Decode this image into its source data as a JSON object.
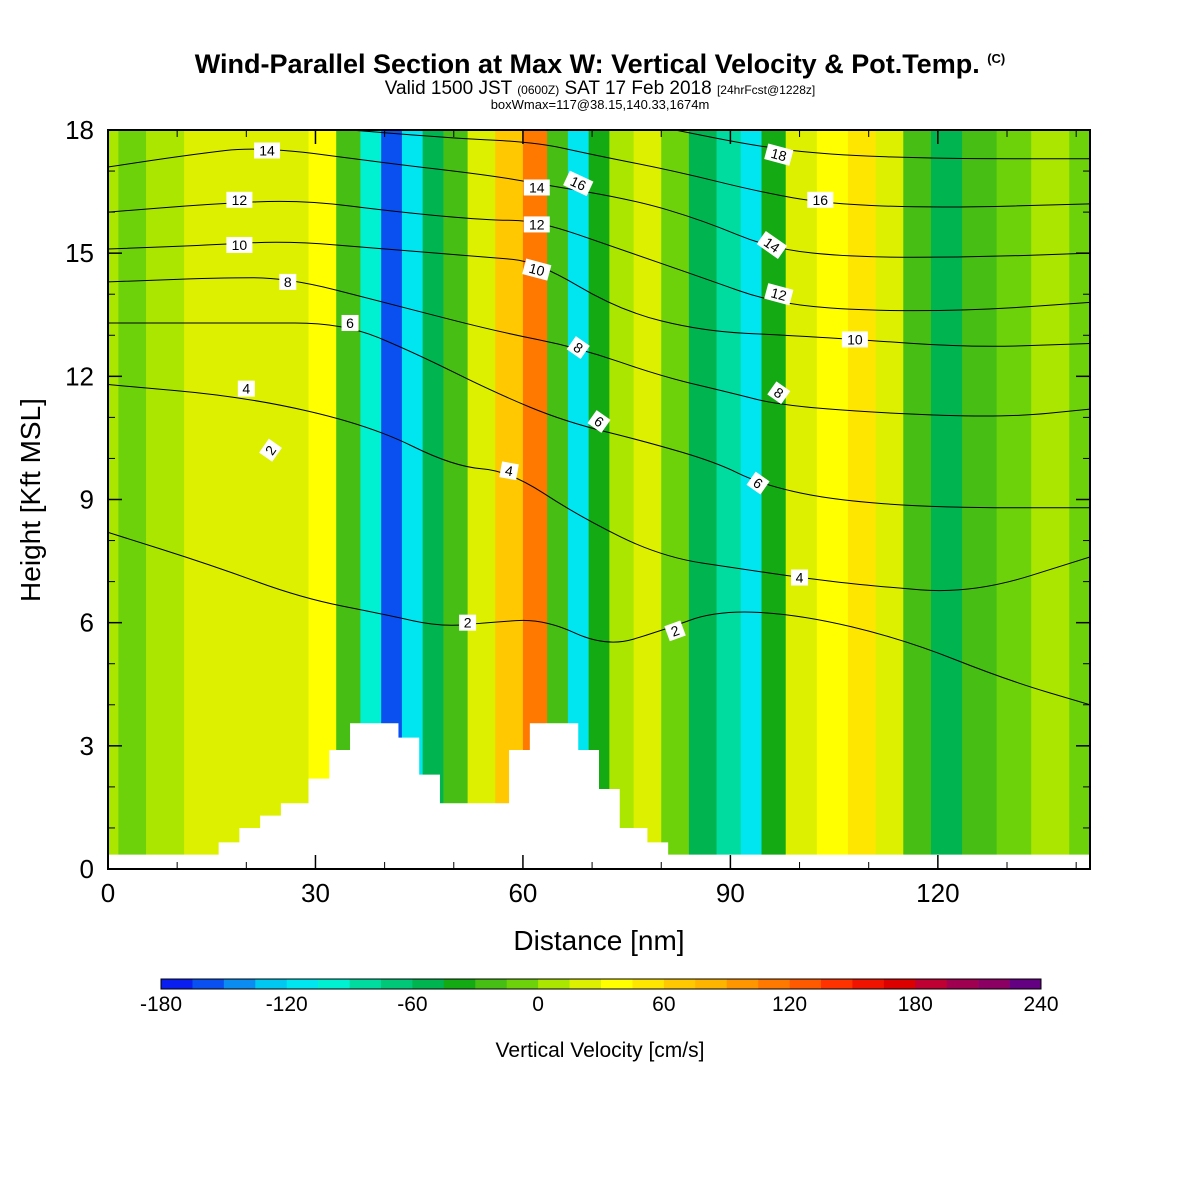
{
  "title": {
    "main": "Wind-Parallel Section at Max W: Vertical Velocity & Pot.Temp.",
    "main_suffix": "(C)",
    "line2_a": "Valid 1500 JST",
    "line2_b": "(0600Z)",
    "line2_c": "SAT 17 Feb 2018",
    "line2_d": "[24hrFcst@1228z]",
    "line3": "boxWmax=117@38.15,140.33,1674m"
  },
  "chart_data": {
    "type": "heatmap",
    "xlabel": "Distance [nm]",
    "ylabel": "Height [Kft MSL]",
    "xlim": [
      0,
      142
    ],
    "ylim": [
      0,
      18
    ],
    "x_ticks": [
      0,
      30,
      60,
      90,
      120
    ],
    "y_ticks": [
      0,
      3,
      6,
      9,
      12,
      15,
      18
    ],
    "colorbar": {
      "label": "Vertical Velocity [cm/s]",
      "tick_labels": [
        -180,
        -120,
        -60,
        0,
        60,
        120,
        180,
        240
      ],
      "levels": [
        -180,
        -165,
        -150,
        -135,
        -120,
        -105,
        -90,
        -75,
        -60,
        -45,
        -30,
        -15,
        0,
        15,
        30,
        45,
        60,
        75,
        90,
        105,
        120,
        135,
        150,
        165,
        180,
        195,
        210,
        225,
        240
      ],
      "colors": [
        "#0a1ef0",
        "#0a50f0",
        "#0a8cf0",
        "#00c8f0",
        "#00e6f0",
        "#00f0d2",
        "#00dca0",
        "#00c878",
        "#00b450",
        "#14aa14",
        "#46be14",
        "#6ed20a",
        "#aae600",
        "#dcf000",
        "#ffff00",
        "#ffe600",
        "#ffc800",
        "#ffb400",
        "#ff9600",
        "#ff7800",
        "#ff5a00",
        "#ff3200",
        "#f01400",
        "#dc0000",
        "#be0032",
        "#a00050",
        "#8c0064",
        "#640082"
      ]
    },
    "vertical_velocity_columns": [
      {
        "x": 0,
        "w": 5
      },
      {
        "x": 3,
        "w": -15
      },
      {
        "x": 8,
        "w": 5
      },
      {
        "x": 14,
        "w": 20
      },
      {
        "x": 22,
        "w": 25
      },
      {
        "x": 27,
        "w": 15
      },
      {
        "x": 31,
        "w": 30
      },
      {
        "x": 35,
        "w": -30
      },
      {
        "x": 38,
        "w": -100
      },
      {
        "x": 41,
        "w": -160
      },
      {
        "x": 44,
        "w": -110
      },
      {
        "x": 47,
        "w": -60
      },
      {
        "x": 50,
        "w": -30
      },
      {
        "x": 54,
        "w": 20
      },
      {
        "x": 58,
        "w": 70
      },
      {
        "x": 62,
        "w": 110
      },
      {
        "x": 65,
        "w": -30
      },
      {
        "x": 68,
        "w": -110
      },
      {
        "x": 71,
        "w": -40
      },
      {
        "x": 74,
        "w": 10
      },
      {
        "x": 78,
        "w": 25
      },
      {
        "x": 82,
        "w": -10
      },
      {
        "x": 86,
        "w": -50
      },
      {
        "x": 90,
        "w": -80
      },
      {
        "x": 93,
        "w": -120
      },
      {
        "x": 96,
        "w": -40
      },
      {
        "x": 100,
        "w": 15
      },
      {
        "x": 105,
        "w": 40
      },
      {
        "x": 109,
        "w": 45
      },
      {
        "x": 113,
        "w": 15
      },
      {
        "x": 117,
        "w": -25
      },
      {
        "x": 121,
        "w": -50
      },
      {
        "x": 126,
        "w": -20
      },
      {
        "x": 131,
        "w": -10
      },
      {
        "x": 136,
        "w": 0
      },
      {
        "x": 142,
        "w": -10
      }
    ],
    "terrain": [
      [
        0,
        0.35
      ],
      [
        16,
        0.35
      ],
      [
        16,
        0.65
      ],
      [
        19,
        0.65
      ],
      [
        19,
        1.0
      ],
      [
        22,
        1.0
      ],
      [
        22,
        1.3
      ],
      [
        25,
        1.3
      ],
      [
        25,
        1.6
      ],
      [
        29,
        1.6
      ],
      [
        29,
        2.2
      ],
      [
        32,
        2.2
      ],
      [
        32,
        2.9
      ],
      [
        35,
        2.9
      ],
      [
        35,
        3.55
      ],
      [
        42,
        3.55
      ],
      [
        42,
        3.2
      ],
      [
        45,
        3.2
      ],
      [
        45,
        2.3
      ],
      [
        48,
        2.3
      ],
      [
        48,
        1.6
      ],
      [
        58,
        1.6
      ],
      [
        58,
        2.9
      ],
      [
        61,
        2.9
      ],
      [
        61,
        3.55
      ],
      [
        68,
        3.55
      ],
      [
        68,
        2.9
      ],
      [
        71,
        2.9
      ],
      [
        71,
        1.95
      ],
      [
        74,
        1.95
      ],
      [
        74,
        1.0
      ],
      [
        78,
        1.0
      ],
      [
        78,
        0.65
      ],
      [
        81,
        0.65
      ],
      [
        81,
        0.35
      ],
      [
        142,
        0.35
      ]
    ],
    "theta_contours": [
      {
        "label": "2",
        "points": [
          [
            0,
            8.2
          ],
          [
            15,
            7.4
          ],
          [
            28,
            6.6
          ],
          [
            40,
            6.2
          ],
          [
            48,
            5.9
          ],
          [
            55,
            6.0
          ],
          [
            63,
            6.1
          ],
          [
            72,
            5.4
          ],
          [
            80,
            5.8
          ],
          [
            88,
            6.3
          ],
          [
            100,
            6.2
          ],
          [
            115,
            5.6
          ],
          [
            130,
            4.6
          ],
          [
            142,
            4.0
          ]
        ]
      },
      {
        "label": "4",
        "points": [
          [
            0,
            11.8
          ],
          [
            20,
            11.5
          ],
          [
            38,
            10.8
          ],
          [
            50,
            9.8
          ],
          [
            58,
            9.7
          ],
          [
            68,
            8.6
          ],
          [
            80,
            7.6
          ],
          [
            92,
            7.3
          ],
          [
            100,
            7.1
          ],
          [
            110,
            6.9
          ],
          [
            125,
            6.7
          ],
          [
            142,
            7.6
          ]
        ]
      },
      {
        "label": "6",
        "points": [
          [
            0,
            13.3
          ],
          [
            20,
            13.3
          ],
          [
            34,
            13.3
          ],
          [
            44,
            12.6
          ],
          [
            56,
            11.6
          ],
          [
            66,
            10.9
          ],
          [
            78,
            10.4
          ],
          [
            88,
            9.9
          ],
          [
            94,
            9.4
          ],
          [
            104,
            9.0
          ],
          [
            120,
            8.8
          ],
          [
            142,
            8.8
          ]
        ]
      },
      {
        "label": "8",
        "points": [
          [
            0,
            14.3
          ],
          [
            16,
            14.4
          ],
          [
            26,
            14.4
          ],
          [
            40,
            13.8
          ],
          [
            56,
            13.1
          ],
          [
            68,
            12.7
          ],
          [
            80,
            12.0
          ],
          [
            90,
            11.6
          ],
          [
            97,
            11.3
          ],
          [
            112,
            11.1
          ],
          [
            130,
            11.0
          ],
          [
            142,
            11.2
          ]
        ]
      },
      {
        "label": "10",
        "points": [
          [
            0,
            15.1
          ],
          [
            15,
            15.2
          ],
          [
            26,
            15.3
          ],
          [
            40,
            15.1
          ],
          [
            55,
            14.9
          ],
          [
            62,
            14.8
          ],
          [
            74,
            13.6
          ],
          [
            86,
            13.1
          ],
          [
            98,
            13.0
          ],
          [
            108,
            12.9
          ],
          [
            125,
            12.7
          ],
          [
            142,
            12.8
          ]
        ]
      },
      {
        "label": "12",
        "points": [
          [
            0,
            16.0
          ],
          [
            15,
            16.2
          ],
          [
            28,
            16.3
          ],
          [
            42,
            16.0
          ],
          [
            55,
            15.8
          ],
          [
            62,
            15.8
          ],
          [
            74,
            15.1
          ],
          [
            86,
            14.4
          ],
          [
            96,
            13.8
          ],
          [
            108,
            13.6
          ],
          [
            125,
            13.6
          ],
          [
            142,
            13.8
          ]
        ]
      },
      {
        "label": "14",
        "points": [
          [
            0,
            17.1
          ],
          [
            12,
            17.4
          ],
          [
            22,
            17.6
          ],
          [
            40,
            17.2
          ],
          [
            55,
            16.9
          ],
          [
            62,
            16.7
          ],
          [
            76,
            16.3
          ],
          [
            86,
            15.8
          ],
          [
            96,
            15.1
          ],
          [
            108,
            14.9
          ],
          [
            125,
            14.9
          ],
          [
            142,
            15.0
          ]
        ]
      },
      {
        "label": "16",
        "points": [
          [
            35,
            18.0
          ],
          [
            50,
            17.8
          ],
          [
            62,
            17.7
          ],
          [
            70,
            17.4
          ],
          [
            82,
            17.0
          ],
          [
            94,
            16.5
          ],
          [
            104,
            16.2
          ],
          [
            120,
            16.1
          ],
          [
            142,
            16.2
          ]
        ]
      },
      {
        "label": "18",
        "points": [
          [
            82,
            18.0
          ],
          [
            94,
            17.6
          ],
          [
            104,
            17.4
          ],
          [
            120,
            17.3
          ],
          [
            142,
            17.3
          ]
        ]
      }
    ],
    "contour_labels": [
      {
        "text": "2",
        "x": 23.5,
        "y": 10.2,
        "angle": -55
      },
      {
        "text": "2",
        "x": 52,
        "y": 6.0,
        "angle": 0
      },
      {
        "text": "2",
        "x": 82,
        "y": 5.8,
        "angle": -20
      },
      {
        "text": "4",
        "x": 20,
        "y": 11.7,
        "angle": 0
      },
      {
        "text": "4",
        "x": 58,
        "y": 9.7,
        "angle": 10
      },
      {
        "text": "4",
        "x": 100,
        "y": 7.1,
        "angle": 0
      },
      {
        "text": "6",
        "x": 35,
        "y": 13.3,
        "angle": 0
      },
      {
        "text": "6",
        "x": 71,
        "y": 10.9,
        "angle": 35
      },
      {
        "text": "6",
        "x": 94,
        "y": 9.4,
        "angle": 35
      },
      {
        "text": "8",
        "x": 26,
        "y": 14.3,
        "angle": 0
      },
      {
        "text": "8",
        "x": 68,
        "y": 12.7,
        "angle": 35
      },
      {
        "text": "8",
        "x": 97,
        "y": 11.6,
        "angle": 35
      },
      {
        "text": "10",
        "x": 19,
        "y": 15.2,
        "angle": 0
      },
      {
        "text": "10",
        "x": 62,
        "y": 14.6,
        "angle": 15
      },
      {
        "text": "10",
        "x": 108,
        "y": 12.9,
        "angle": 0
      },
      {
        "text": "12",
        "x": 19,
        "y": 16.3,
        "angle": 0
      },
      {
        "text": "12",
        "x": 62,
        "y": 15.7,
        "angle": 0
      },
      {
        "text": "12",
        "x": 97,
        "y": 14.0,
        "angle": 15
      },
      {
        "text": "14",
        "x": 23,
        "y": 17.5,
        "angle": 0
      },
      {
        "text": "14",
        "x": 62,
        "y": 16.6,
        "angle": 0
      },
      {
        "text": "14",
        "x": 96,
        "y": 15.2,
        "angle": 35
      },
      {
        "text": "16",
        "x": 68,
        "y": 16.7,
        "angle": 25
      },
      {
        "text": "16",
        "x": 103,
        "y": 16.3,
        "angle": 0
      },
      {
        "text": "18",
        "x": 97,
        "y": 17.4,
        "angle": 15
      }
    ]
  }
}
